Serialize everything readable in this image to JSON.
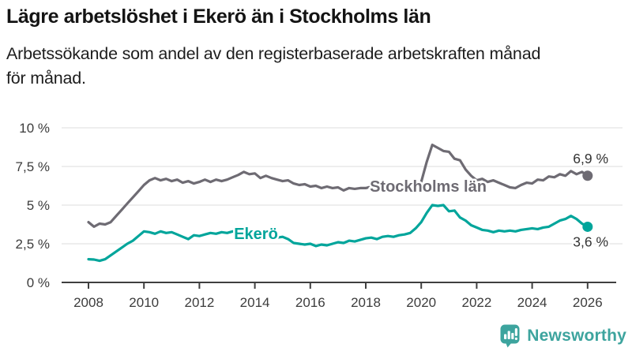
{
  "header": {
    "title": "Lägre arbetslöshet i Ekerö än i Stockholms län",
    "subtitle_lines": [
      "Arbetssökande som andel av den registerbaserade arbetskraften månad",
      "för månad."
    ]
  },
  "chart_data": {
    "type": "line",
    "title": "Lägre arbetslöshet i Ekerö än i Stockholms län",
    "xlabel": "",
    "ylabel": "",
    "x_start": 2008.0,
    "x_step": 0.2,
    "ylim": [
      0,
      10
    ],
    "grid": "horizontal",
    "yticks": [
      {
        "value": 0,
        "label": "0 %"
      },
      {
        "value": 2.5,
        "label": "2,5 %"
      },
      {
        "value": 5,
        "label": "5 %"
      },
      {
        "value": 7.5,
        "label": "7,5 %"
      },
      {
        "value": 10,
        "label": "10 %"
      }
    ],
    "xticks": [
      2008,
      2010,
      2012,
      2014,
      2016,
      2018,
      2020,
      2022,
      2024,
      2026
    ],
    "series": [
      {
        "id": "stockholms-lan",
        "name": "Stockholms län",
        "color": "#6e6b73",
        "end_label": "6,9 %",
        "values": [
          3.9,
          3.6,
          3.8,
          3.75,
          3.9,
          4.3,
          4.7,
          5.1,
          5.5,
          5.9,
          6.3,
          6.6,
          6.75,
          6.6,
          6.7,
          6.55,
          6.65,
          6.45,
          6.55,
          6.4,
          6.5,
          6.65,
          6.5,
          6.65,
          6.55,
          6.65,
          6.8,
          6.95,
          7.15,
          7.0,
          7.05,
          6.75,
          6.9,
          6.75,
          6.65,
          6.55,
          6.6,
          6.4,
          6.3,
          6.35,
          6.2,
          6.25,
          6.1,
          6.2,
          6.1,
          6.15,
          5.95,
          6.1,
          6.05,
          6.1,
          6.1,
          6.2,
          6.1,
          6.2,
          6.15,
          6.2,
          6.1,
          6.2,
          6.25,
          6.3,
          6.5,
          7.8,
          8.9,
          8.7,
          8.5,
          8.45,
          8.0,
          7.9,
          7.3,
          6.9,
          6.6,
          6.7,
          6.5,
          6.6,
          6.45,
          6.3,
          6.15,
          6.1,
          6.3,
          6.45,
          6.4,
          6.65,
          6.6,
          6.85,
          6.8,
          7.0,
          6.9,
          7.2,
          7.0,
          7.15,
          6.9
        ]
      },
      {
        "id": "ekero",
        "name": "Ekerö",
        "color": "#00a59b",
        "end_label": "3,6 %",
        "values": [
          1.5,
          1.48,
          1.4,
          1.5,
          1.75,
          2.0,
          2.25,
          2.5,
          2.7,
          3.0,
          3.3,
          3.25,
          3.15,
          3.3,
          3.2,
          3.25,
          3.1,
          2.95,
          2.8,
          3.05,
          3.0,
          3.1,
          3.2,
          3.15,
          3.25,
          3.2,
          3.3,
          3.25,
          3.3,
          3.2,
          3.3,
          3.25,
          3.3,
          3.15,
          2.9,
          2.95,
          2.8,
          2.55,
          2.5,
          2.45,
          2.5,
          2.35,
          2.45,
          2.4,
          2.5,
          2.6,
          2.55,
          2.7,
          2.65,
          2.75,
          2.85,
          2.9,
          2.8,
          2.95,
          3.0,
          2.95,
          3.05,
          3.1,
          3.2,
          3.5,
          3.9,
          4.5,
          5.0,
          4.95,
          5.0,
          4.6,
          4.65,
          4.2,
          4.0,
          3.7,
          3.55,
          3.4,
          3.35,
          3.25,
          3.35,
          3.3,
          3.35,
          3.3,
          3.4,
          3.45,
          3.5,
          3.45,
          3.55,
          3.6,
          3.8,
          4.0,
          4.1,
          4.3,
          4.1,
          3.8,
          3.6
        ]
      }
    ]
  },
  "branding": {
    "logo_text": "Newsworthy",
    "logo_color": "#3da49e",
    "logo_icon": "bar-chart-speech-bubble"
  },
  "colors": {
    "grid": "#e3e3e3",
    "axis": "#3f3f3f",
    "tick_text": "#3c3c3c",
    "end_label_text": "#333333"
  }
}
